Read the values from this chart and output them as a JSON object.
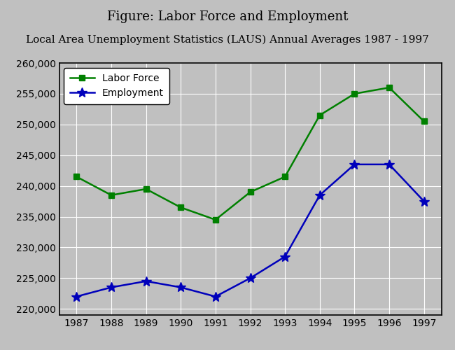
{
  "title_line1": "Figure: Labor Force and Employment",
  "title_line2": "Local Area Unemployment Statistics (LAUS) Annual Averages 1987 - 1997",
  "years": [
    1987,
    1988,
    1989,
    1990,
    1991,
    1992,
    1993,
    1994,
    1995,
    1996,
    1997
  ],
  "labor_force": [
    241500,
    238500,
    239500,
    236500,
    234500,
    239000,
    241500,
    251500,
    255000,
    256000,
    250500
  ],
  "employment": [
    222000,
    223500,
    224500,
    223500,
    222000,
    225000,
    228500,
    238500,
    243500,
    243500,
    237500
  ],
  "labor_force_color": "#008000",
  "employment_color": "#0000BB",
  "background_color": "#C0C0C0",
  "plot_bg_color": "#C0C0C0",
  "grid_color": "#FFFFFF",
  "ylim_min": 219000,
  "ylim_max": 260000,
  "ytick_values": [
    220000,
    225000,
    230000,
    235000,
    240000,
    245000,
    250000,
    255000,
    260000
  ],
  "legend_labor_force": "Labor Force",
  "legend_employment": "Employment",
  "title_fontsize": 13,
  "tick_fontsize": 10
}
